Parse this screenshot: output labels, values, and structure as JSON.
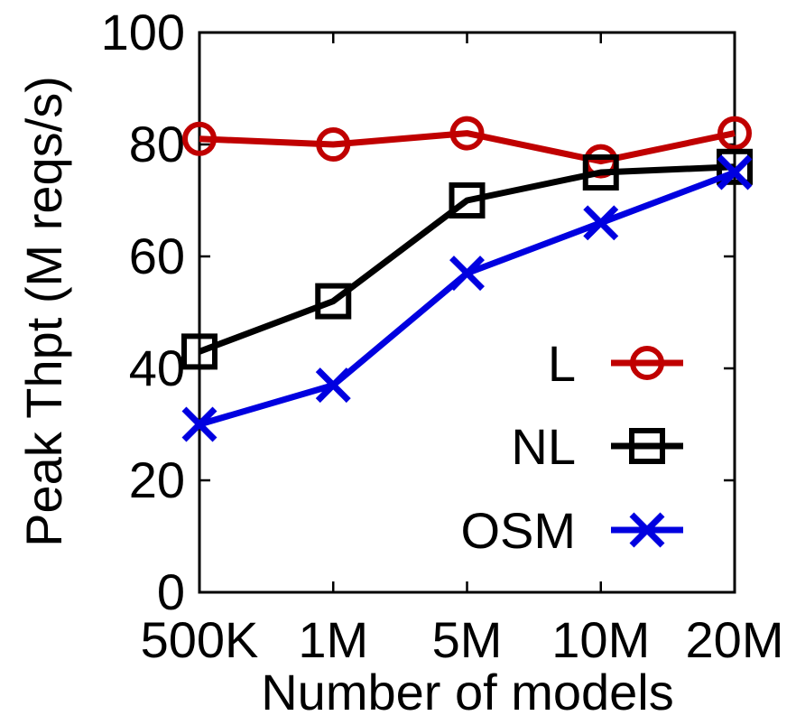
{
  "chart_data": {
    "type": "line",
    "xlabel": "Number of models",
    "ylabel": "Peak Thpt (M reqs/s)",
    "categories": [
      "500K",
      "1M",
      "5M",
      "10M",
      "20M"
    ],
    "ylim": [
      0,
      100
    ],
    "yticks": [
      0,
      20,
      40,
      60,
      80,
      100
    ],
    "grid": false,
    "legend_position": "right",
    "series": [
      {
        "name": "L",
        "values": [
          81,
          80,
          82,
          77,
          82
        ],
        "color": "#c00000",
        "marker": "circle"
      },
      {
        "name": "NL",
        "values": [
          43,
          52,
          70,
          75,
          76
        ],
        "color": "#000000",
        "marker": "square"
      },
      {
        "name": "OSM",
        "values": [
          30,
          37,
          57,
          66,
          75
        ],
        "color": "#0000e0",
        "marker": "x"
      }
    ]
  }
}
